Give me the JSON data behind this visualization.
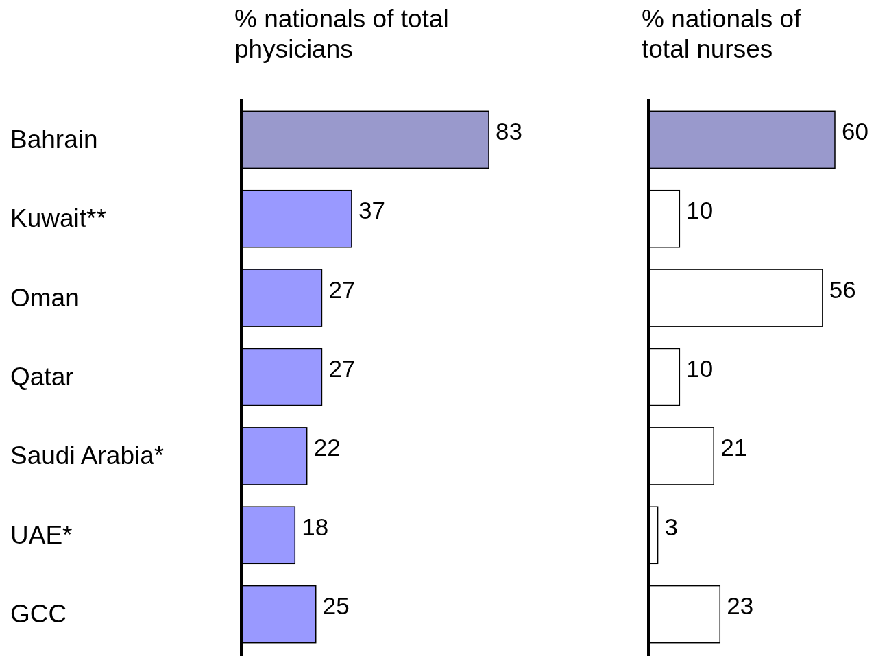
{
  "chart_data": [
    {
      "type": "bar",
      "orientation": "horizontal",
      "title": "% nationals of total physicians",
      "categories": [
        "Bahrain",
        "Kuwait**",
        "Oman",
        "Qatar",
        "Saudi Arabia*",
        "UAE*",
        "GCC"
      ],
      "values": [
        83,
        37,
        27,
        27,
        22,
        18,
        25
      ],
      "colors": [
        "#9999cc",
        "#9999ff",
        "#9999ff",
        "#9999ff",
        "#9999ff",
        "#9999ff",
        "#9999ff"
      ],
      "data_labels": true,
      "tick_labels": "y"
    },
    {
      "type": "bar",
      "orientation": "horizontal",
      "title": "% nationals of total nurses",
      "categories": [
        null,
        null,
        null,
        null,
        null,
        null,
        null
      ],
      "values": [
        60,
        10,
        56,
        10,
        21,
        3,
        23
      ],
      "colors": [
        "#9999cc",
        "#ffffff",
        "#ffffff",
        "#ffffff",
        "#ffffff",
        "#ffffff",
        "#ffffff"
      ],
      "data_labels": true
    }
  ]
}
